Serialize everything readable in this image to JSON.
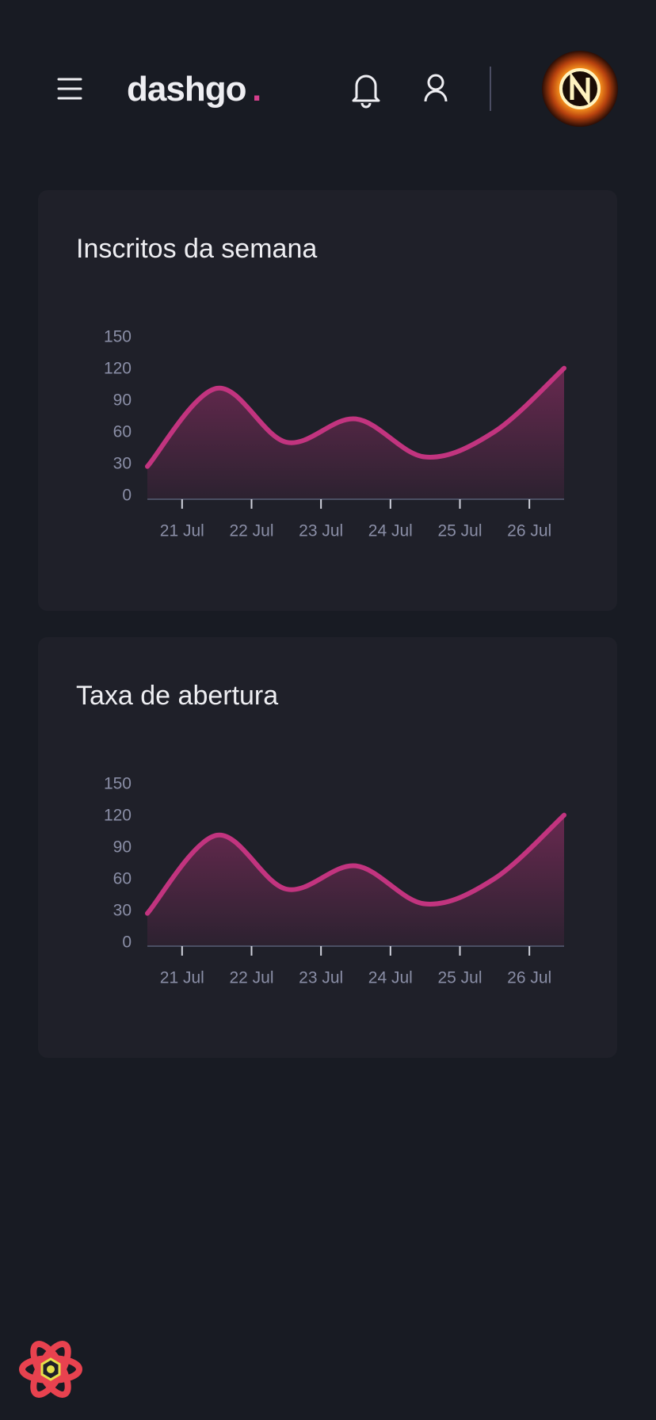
{
  "header": {
    "logo": "dashgo",
    "logo_dot": "."
  },
  "chart_data": [
    {
      "type": "area",
      "title": "Inscritos da semana",
      "color": "#c2347f",
      "x": [
        20.5,
        21.5,
        22.5,
        23.5,
        24.5,
        25.5,
        26.5
      ],
      "values": [
        31,
        105,
        54,
        76,
        40,
        64,
        124
      ],
      "xlim": [
        20.5,
        26.5
      ],
      "xticks": [
        {
          "value": 21,
          "label": "21 Jul"
        },
        {
          "value": 22,
          "label": "22 Jul"
        },
        {
          "value": 23,
          "label": "23 Jul"
        },
        {
          "value": 24,
          "label": "24 Jul"
        },
        {
          "value": 25,
          "label": "25 Jul"
        },
        {
          "value": 26,
          "label": "26 Jul"
        }
      ],
      "ylim": [
        0,
        150
      ],
      "yticks": [
        0,
        30,
        60,
        90,
        120,
        150
      ]
    },
    {
      "type": "area",
      "title": "Taxa de abertura",
      "color": "#c2347f",
      "x": [
        20.5,
        21.5,
        22.5,
        23.5,
        24.5,
        25.5,
        26.5
      ],
      "values": [
        31,
        105,
        54,
        76,
        40,
        64,
        124
      ],
      "xlim": [
        20.5,
        26.5
      ],
      "xticks": [
        {
          "value": 21,
          "label": "21 Jul"
        },
        {
          "value": 22,
          "label": "22 Jul"
        },
        {
          "value": 23,
          "label": "23 Jul"
        },
        {
          "value": 24,
          "label": "24 Jul"
        },
        {
          "value": 25,
          "label": "25 Jul"
        },
        {
          "value": 26,
          "label": "26 Jul"
        }
      ],
      "ylim": [
        0,
        150
      ],
      "yticks": [
        0,
        30,
        60,
        90,
        120,
        150
      ]
    }
  ]
}
